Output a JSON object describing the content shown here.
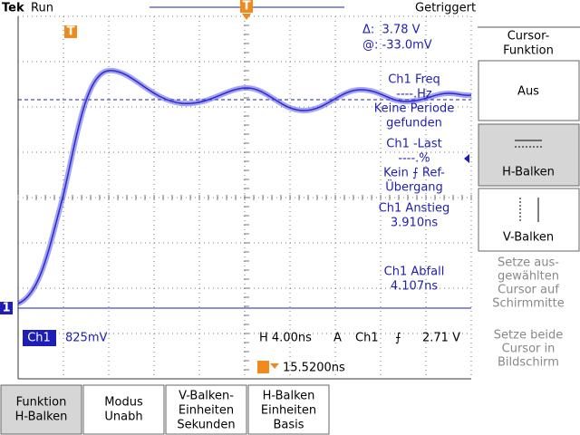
{
  "header": {
    "brand": "Tek",
    "status": "Run",
    "trigger_state": "Getriggert"
  },
  "trigger_marker": "T",
  "channel_marker": "1",
  "cursor_readout": {
    "delta": "Δ:  3.78 V",
    "at": "@: -33.0mV"
  },
  "measurements": [
    {
      "lines": [
        "Ch1 Freq",
        "----.Hz",
        "Keine Periode",
        "gefunden"
      ]
    },
    {
      "lines": [
        "Ch1 -Last",
        "----.%",
        "Kein ⨍ Ref-",
        "Übergang"
      ]
    },
    {
      "lines": [
        "Ch1 Anstieg",
        "3.910ns"
      ]
    },
    {
      "lines": [
        "Ch1 Abfall",
        "4.107ns"
      ]
    }
  ],
  "status_bar": {
    "channel": "Ch1",
    "scale": "825mV",
    "timebase": "H 4.00ns",
    "mode": "A",
    "trigger_channel": "Ch1",
    "trigger_slope": "⨍",
    "trigger_level": "2.71 V",
    "position": "15.5200ns"
  },
  "side_menu": {
    "title": [
      "Cursor-",
      "Funktion"
    ],
    "buttons": [
      [
        "Aus"
      ],
      [
        "H-Balken"
      ],
      [
        "V-Balken"
      ]
    ],
    "notes": [
      [
        "Setze aus-",
        "gewählten",
        "Cursor auf",
        "Schirmmitte"
      ],
      [
        "Setze beide",
        "Cursor in",
        "Bildschirm"
      ]
    ]
  },
  "bottom_menu": [
    [
      "Funktion",
      "H-Balken"
    ],
    [
      "Modus",
      "Unabh"
    ],
    [
      "V-Balken-",
      "Einheiten",
      "Sekunden"
    ],
    [
      "H-Balken",
      "Einheiten",
      "Basis"
    ]
  ]
}
